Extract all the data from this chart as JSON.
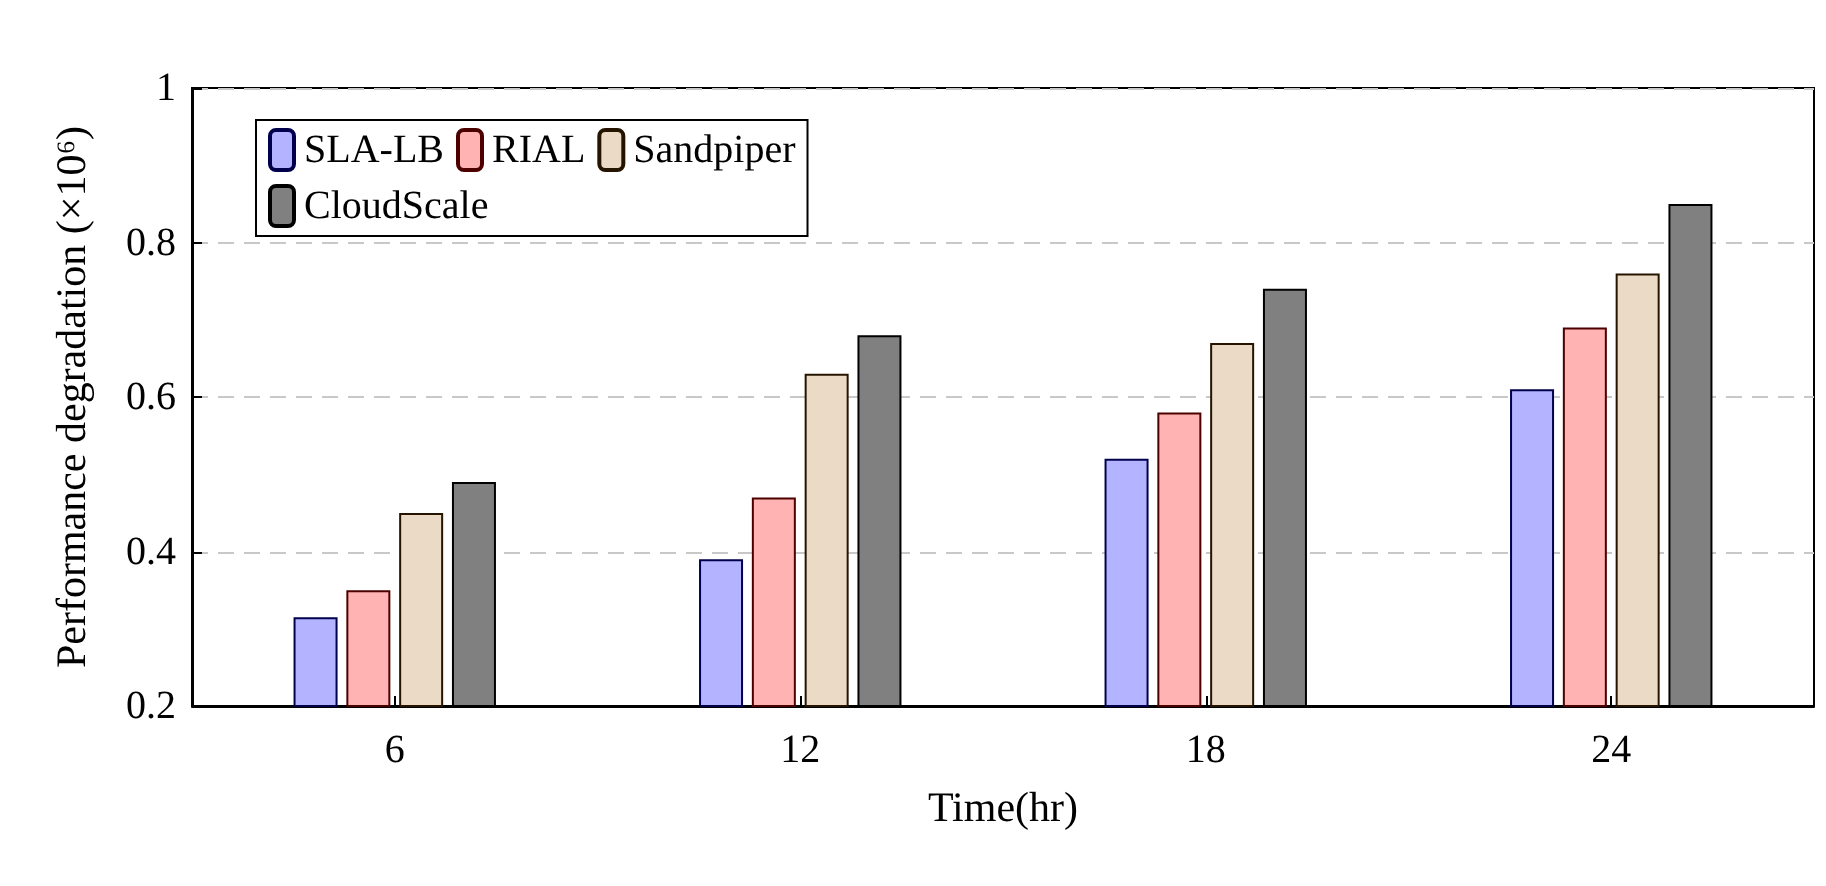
{
  "chart_data": {
    "type": "bar",
    "xlabel": "Time(hr)",
    "ylabel": "Performance degradation (×10⁶)",
    "categories": [
      "6",
      "12",
      "18",
      "24"
    ],
    "series": [
      {
        "name": "SLA-LB",
        "color": "#b3b3ff",
        "values": [
          0.315,
          0.39,
          0.52,
          0.61
        ]
      },
      {
        "name": "RIAL",
        "color": "#ffb3b3",
        "values": [
          0.35,
          0.47,
          0.58,
          0.69
        ]
      },
      {
        "name": "Sandpiper",
        "color": "#ebdac6",
        "values": [
          0.45,
          0.63,
          0.67,
          0.76
        ]
      },
      {
        "name": "CloudScale",
        "color": "#808080",
        "values": [
          0.49,
          0.68,
          0.74,
          0.85
        ]
      }
    ],
    "ylim": [
      0.2,
      1
    ],
    "yticks": [
      0.2,
      0.4,
      0.6,
      0.8,
      1
    ],
    "grid": "y",
    "legend": "top left"
  }
}
